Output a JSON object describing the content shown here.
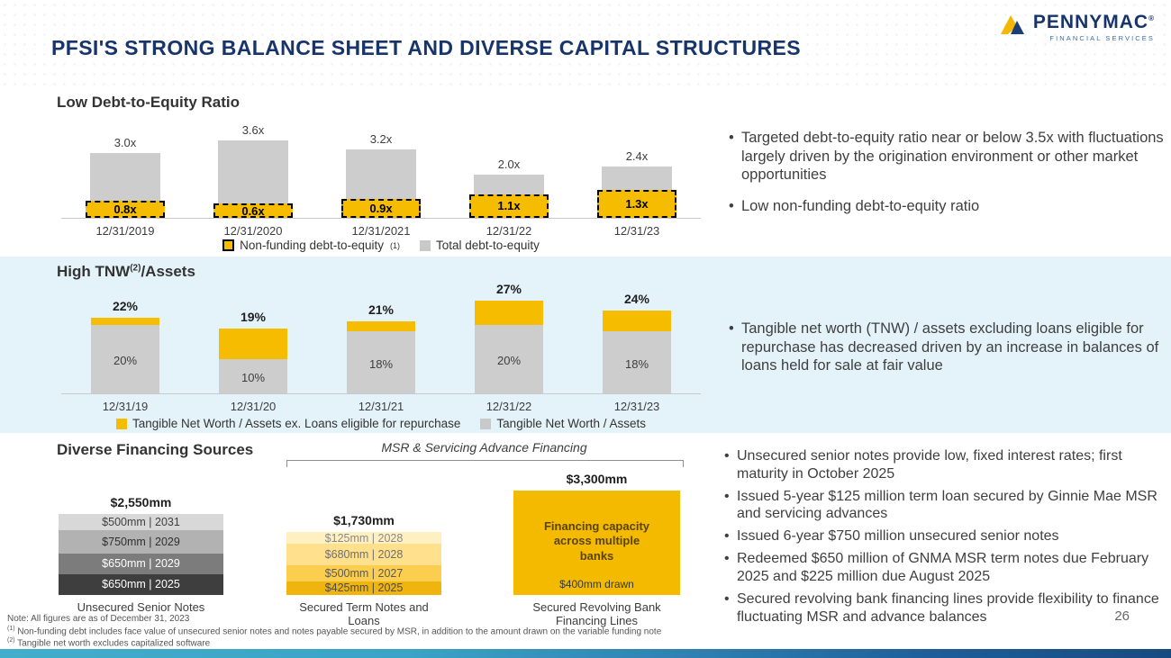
{
  "slide": {
    "title": "PFSI'S STRONG BALANCE SHEET AND DIVERSE CAPITAL STRUCTURES",
    "page_number": "26"
  },
  "logo": {
    "brand": "PENNYMAC",
    "registered": "®",
    "subtitle": "FINANCIAL SERVICES"
  },
  "colors": {
    "navy": "#17356B",
    "gold": "#F5BC00",
    "gray_bar": "#CDCDCD",
    "band_blue": "#E4F2F9"
  },
  "debt_section": {
    "heading": "Low Debt-to-Equity Ratio",
    "legend": {
      "nonfunding_label": "Non-funding debt-to-equity",
      "nonfunding_sup": "(1)",
      "total_label": "Total debt-to-equity"
    },
    "bullets": [
      "Targeted debt-to-equity ratio near or below 3.5x with fluctuations largely driven by the origination environment or other market opportunities",
      "Low non-funding debt-to-equity ratio"
    ]
  },
  "tnw_section": {
    "heading_pre": "High TNW",
    "heading_sup": "(2)",
    "heading_post": "/Assets",
    "legend": {
      "ex_label": "Tangible Net Worth / Assets ex. Loans eligible for repurchase",
      "total_label": "Tangible Net Worth / Assets"
    },
    "bullets": [
      "Tangible net worth (TNW) / assets excluding loans eligible for repurchase has decreased driven by an increase in balances of loans held for sale at fair value"
    ]
  },
  "financing_section": {
    "heading": "Diverse Financing Sources",
    "bracket_label": "MSR & Servicing Advance Financing",
    "bullets": [
      "Unsecured senior notes provide low, fixed interest rates; first maturity in October 2025",
      "Issued 5-year $125 million term loan secured by Ginnie Mae MSR and servicing advances",
      "Issued 6-year $750 million unsecured senior notes",
      "Redeemed $650 million of GNMA MSR term notes due February 2025 and $225 million due August 2025",
      "Secured revolving bank financing lines provide flexibility to finance fluctuating MSR and advance balances"
    ]
  },
  "footnotes": {
    "note": "Note: All figures are as of December 31, 2023",
    "fn1_marker": "(1)",
    "fn1_text": " Non-funding debt includes face value of unsecured senior notes and notes payable secured by MSR, in addition to the amount drawn on the variable funding note",
    "fn2_marker": "(2)",
    "fn2_text": " Tangible net worth excludes capitalized software"
  },
  "chart_data": [
    {
      "type": "bar",
      "title": "Low Debt-to-Equity Ratio",
      "categories": [
        "12/31/2019",
        "12/31/2020",
        "12/31/2021",
        "12/31/22",
        "12/31/23"
      ],
      "series": [
        {
          "name": "Non-funding debt-to-equity",
          "color": "#F5BC00",
          "values": [
            0.8,
            0.6,
            0.9,
            1.1,
            1.3
          ],
          "labels": [
            "0.8x",
            "0.6x",
            "0.9x",
            "1.1x",
            "1.3x"
          ]
        },
        {
          "name": "Total debt-to-equity",
          "color": "#CDCDCD",
          "values": [
            3.0,
            3.6,
            3.2,
            2.0,
            2.4
          ],
          "labels": [
            "3.0x",
            "3.6x",
            "3.2x",
            "2.0x",
            "2.4x"
          ]
        }
      ],
      "ylim": [
        0,
        4
      ],
      "grid": false,
      "legend_position": "bottom"
    },
    {
      "type": "bar",
      "stacked": true,
      "title": "High TNW(2)/Assets",
      "unit": "%",
      "categories": [
        "12/31/19",
        "12/31/20",
        "12/31/21",
        "12/31/22",
        "12/31/23"
      ],
      "series": [
        {
          "name": "Tangible Net Worth / Assets ex. Loans eligible for repurchase",
          "color": "#F5BC00",
          "values": [
            22,
            19,
            21,
            27,
            24
          ],
          "labels": [
            "22%",
            "19%",
            "21%",
            "27%",
            "24%"
          ]
        },
        {
          "name": "Tangible Net Worth / Assets",
          "color": "#CDCDCD",
          "values": [
            20,
            10,
            18,
            20,
            18
          ],
          "labels": [
            "20%",
            "10%",
            "18%",
            "20%",
            "18%"
          ]
        }
      ],
      "ylim": [
        0,
        30
      ],
      "grid": false,
      "legend_position": "bottom"
    },
    {
      "type": "bar",
      "stacked": true,
      "title": "Diverse Financing Sources",
      "unit": "$mm",
      "groups": [
        {
          "caption": "Unsecured Senior Notes",
          "total_label": "$2,550mm",
          "total_value": 2550,
          "segments": [
            {
              "label": "$500mm | 2031",
              "value": 500,
              "color": "#D8D8D8",
              "text_color": "#3F3F3F"
            },
            {
              "label": "$750mm | 2029",
              "value": 750,
              "color": "#B2B2B2",
              "text_color": "#303030"
            },
            {
              "label": "$650mm | 2029",
              "value": 650,
              "color": "#7C7C7C",
              "text_color": "#FFFFFF"
            },
            {
              "label": "$650mm | 2025",
              "value": 650,
              "color": "#3E3E3E",
              "text_color": "#FFFFFF"
            }
          ]
        },
        {
          "caption": "Secured Term Notes and Loans",
          "total_label": "$1,730mm",
          "total_value": 1730,
          "segments": [
            {
              "label": "$125mm | 2028",
              "value": 125,
              "color": "#FFF0C2",
              "text_color": "#8A8A8A"
            },
            {
              "label": "$680mm | 2028",
              "value": 680,
              "color": "#FFE08C",
              "text_color": "#6F6F6F"
            },
            {
              "label": "$500mm | 2027",
              "value": 500,
              "color": "#FBCE4F",
              "text_color": "#5A5A5A"
            },
            {
              "label": "$425mm | 2025",
              "value": 425,
              "color": "#EFB40D",
              "text_color": "#4A4A4A"
            }
          ]
        },
        {
          "caption": "Secured Revolving Bank Financing Lines",
          "total_label": "$3,300mm",
          "total_value": 3300,
          "segments": [
            {
              "label": "Financing capacity across multiple banks",
              "value": 3300,
              "color": "#F3BA00",
              "text_color": "#5A4300"
            }
          ],
          "drawn_label": "$400mm drawn"
        }
      ]
    }
  ]
}
